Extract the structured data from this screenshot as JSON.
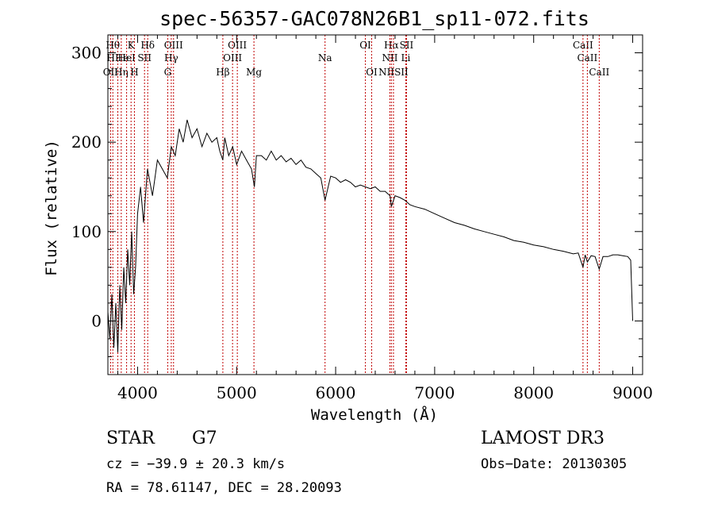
{
  "chart_data": {
    "type": "line",
    "title": "spec-56357-GAC078N26B1_sp11-072.fits",
    "xlabel": "Wavelength (Å)",
    "ylabel": "Flux (relative)",
    "xlim": [
      3700,
      9100
    ],
    "ylim": [
      -60,
      320
    ],
    "xticks": [
      4000,
      5000,
      6000,
      7000,
      8000,
      9000
    ],
    "yticks": [
      0,
      100,
      200,
      300
    ],
    "grid": false,
    "series": [
      {
        "name": "flux",
        "x": [
          3700,
          3720,
          3740,
          3760,
          3780,
          3800,
          3820,
          3840,
          3860,
          3880,
          3900,
          3920,
          3940,
          3960,
          3980,
          4000,
          4030,
          4060,
          4100,
          4150,
          4200,
          4250,
          4300,
          4340,
          4380,
          4420,
          4460,
          4500,
          4550,
          4600,
          4650,
          4700,
          4750,
          4800,
          4830,
          4861,
          4880,
          4920,
          4960,
          5000,
          5050,
          5100,
          5150,
          5180,
          5200,
          5250,
          5300,
          5350,
          5400,
          5450,
          5500,
          5550,
          5600,
          5650,
          5700,
          5750,
          5800,
          5850,
          5893,
          5950,
          6000,
          6050,
          6100,
          6150,
          6200,
          6250,
          6300,
          6350,
          6400,
          6450,
          6500,
          6550,
          6563,
          6600,
          6650,
          6700,
          6750,
          6800,
          6900,
          7000,
          7100,
          7200,
          7300,
          7400,
          7500,
          7600,
          7700,
          7800,
          7900,
          8000,
          8100,
          8200,
          8300,
          8400,
          8450,
          8498,
          8520,
          8542,
          8580,
          8620,
          8662,
          8700,
          8750,
          8800,
          8850,
          8900,
          8950,
          8980,
          9000
        ],
        "y": [
          10,
          -20,
          30,
          -30,
          20,
          -35,
          40,
          -10,
          60,
          20,
          80,
          40,
          100,
          30,
          60,
          120,
          150,
          110,
          170,
          140,
          180,
          170,
          160,
          195,
          185,
          215,
          200,
          225,
          205,
          215,
          195,
          210,
          200,
          205,
          190,
          180,
          205,
          185,
          195,
          175,
          190,
          180,
          170,
          150,
          185,
          185,
          180,
          190,
          180,
          185,
          178,
          182,
          175,
          180,
          172,
          170,
          165,
          160,
          135,
          162,
          160,
          155,
          158,
          155,
          150,
          152,
          150,
          148,
          150,
          145,
          145,
          140,
          128,
          140,
          138,
          135,
          130,
          128,
          125,
          120,
          115,
          110,
          107,
          103,
          100,
          97,
          94,
          90,
          88,
          85,
          83,
          80,
          78,
          75,
          76,
          60,
          74,
          66,
          73,
          72,
          58,
          72,
          72,
          74,
          74,
          73,
          72,
          68,
          0
        ]
      }
    ],
    "spectral_lines": [
      {
        "label": "Hθ",
        "x": 3750,
        "row": 1
      },
      {
        "label": "OII",
        "x": 3727,
        "row": 3
      },
      {
        "label": "HHe",
        "x": 3800,
        "row": 2
      },
      {
        "label": "Hη",
        "x": 3835,
        "row": 3
      },
      {
        "label": "K",
        "x": 3934,
        "row": 1
      },
      {
        "label": "HeI",
        "x": 3889,
        "row": 2
      },
      {
        "label": "H",
        "x": 3968,
        "row": 3
      },
      {
        "label": "Hδ",
        "x": 4102,
        "row": 1
      },
      {
        "label": "SII",
        "x": 4070,
        "row": 2
      },
      {
        "label": "OIII",
        "x": 4363,
        "row": 1
      },
      {
        "label": "Hγ",
        "x": 4340,
        "row": 2
      },
      {
        "label": "G",
        "x": 4304,
        "row": 3
      },
      {
        "label": "Hβ",
        "x": 4861,
        "row": 3
      },
      {
        "label": "OIII",
        "x": 5007,
        "row": 1
      },
      {
        "label": "OIII",
        "x": 4959,
        "row": 2
      },
      {
        "label": "Mg",
        "x": 5175,
        "row": 3
      },
      {
        "label": "Na",
        "x": 5893,
        "row": 2
      },
      {
        "label": "OI",
        "x": 6300,
        "row": 1
      },
      {
        "label": "OI",
        "x": 6364,
        "row": 3
      },
      {
        "label": "Hα",
        "x": 6563,
        "row": 1
      },
      {
        "label": "SII",
        "x": 6716,
        "row": 1
      },
      {
        "label": "NII",
        "x": 6548,
        "row": 2
      },
      {
        "label": "Li",
        "x": 6708,
        "row": 2
      },
      {
        "label": "NIISII",
        "x": 6584,
        "row": 3
      },
      {
        "label": "CaII",
        "x": 8498,
        "row": 1
      },
      {
        "label": "CaII",
        "x": 8542,
        "row": 2
      },
      {
        "label": "CaII",
        "x": 8662,
        "row": 3
      }
    ]
  },
  "info": {
    "object_class": "STAR",
    "subclass": "G7",
    "survey": "LAMOST DR3",
    "cz": "cz = −39.9 ± 20.3 km/s",
    "obs_date": "Obs−Date: 20130305",
    "coords": "RA =  78.61147, DEC =  28.20093"
  }
}
